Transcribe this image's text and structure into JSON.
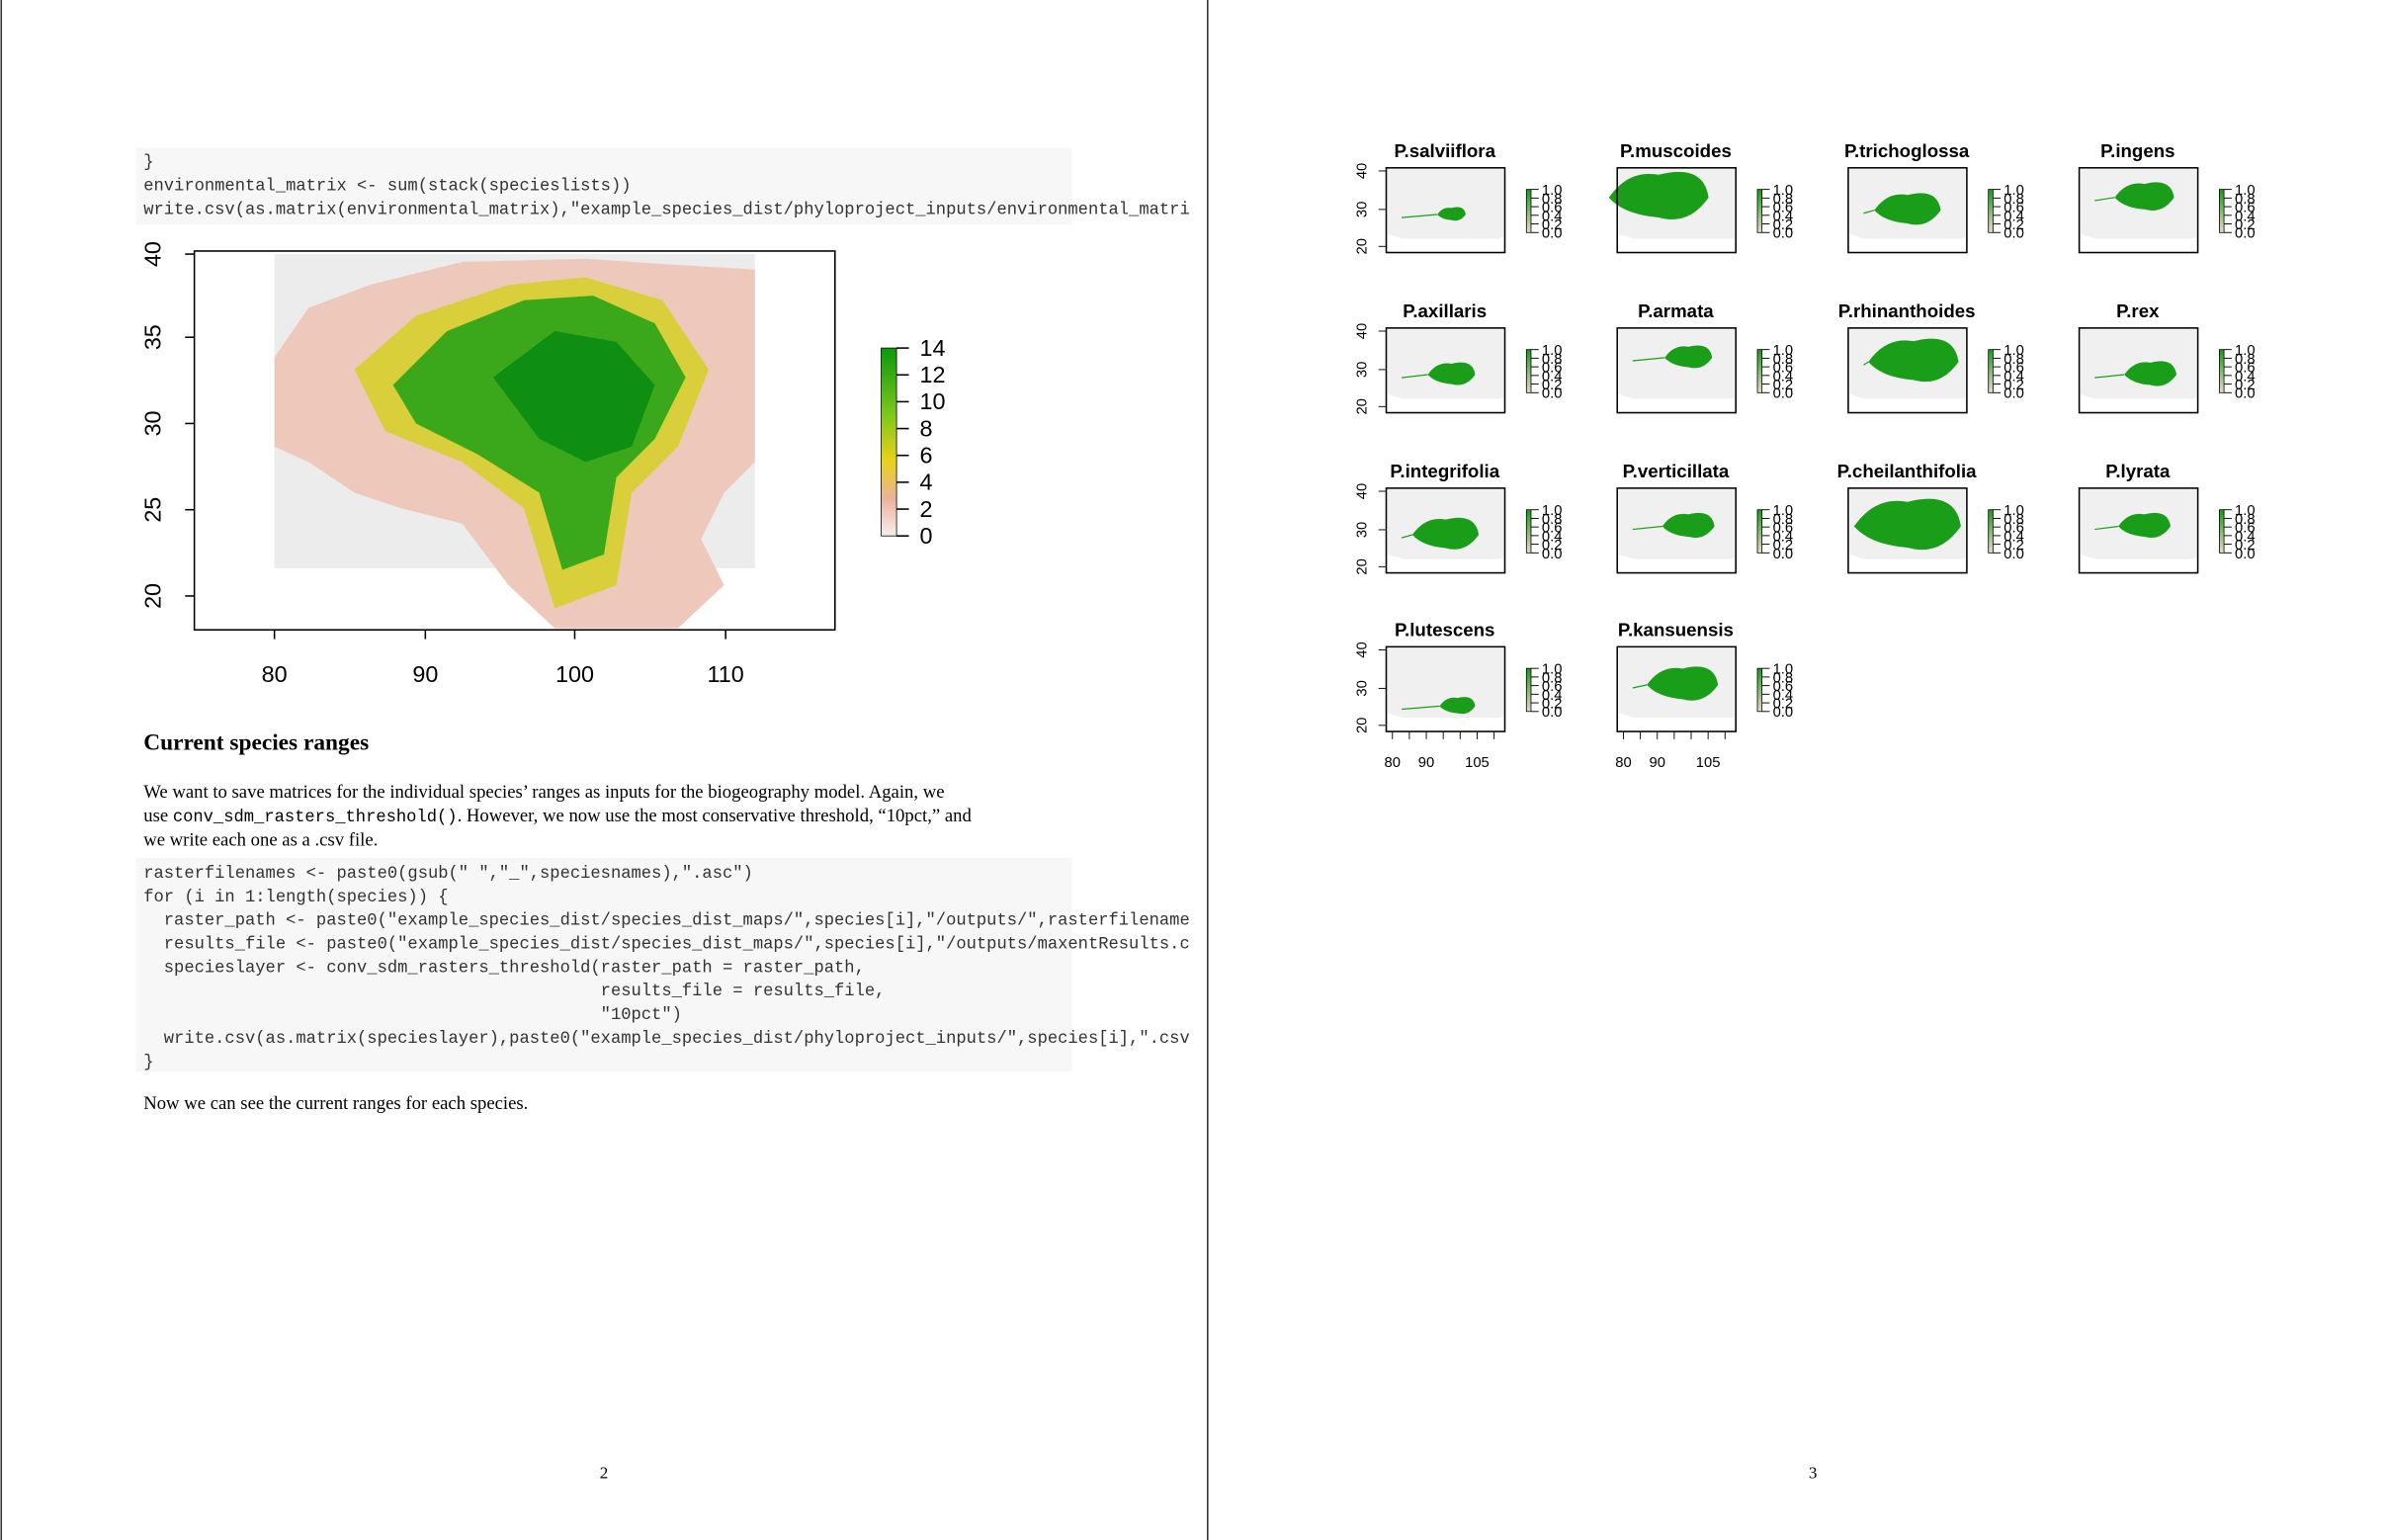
{
  "pages": [
    {
      "number": "2",
      "code_1": [
        "}",
        "environmental_matrix <- sum(stack(specieslists))",
        "write.csv(as.matrix(environmental_matrix),\"example_species_dist/phyloproject_inputs/environmental_matri"
      ],
      "figure": {
        "yticks": [
          "40",
          "35",
          "30",
          "25",
          "20"
        ],
        "xticks": [
          "80",
          "90",
          "100",
          "110"
        ],
        "legend_ticks": [
          "14",
          "12",
          "10",
          "8",
          "6",
          "4",
          "2",
          "0"
        ]
      },
      "heading": "Current species ranges",
      "paragraph": [
        "We want to save matrices for the individual species’ ranges as inputs for the biogeography model.  Again, we",
        {
          "before": "use ",
          "code": "conv_sdm_rasters_threshold()",
          "after": ". However, we now use the most conservative threshold, “10pct,” and"
        },
        "we write each one as a .csv file."
      ],
      "code_2": [
        "rasterfilenames <- paste0(gsub(\" \",\"_\",speciesnames),\".asc\")",
        "for (i in 1:length(species)) {",
        "  raster_path <- paste0(\"example_species_dist/species_dist_maps/\",species[i],\"/outputs/\",rasterfilename",
        "  results_file <- paste0(\"example_species_dist/species_dist_maps/\",species[i],\"/outputs/maxentResults.c",
        "  specieslayer <- conv_sdm_rasters_threshold(raster_path = raster_path,",
        "                                             results_file = results_file,",
        "                                             \"10pct\")",
        "  write.csv(as.matrix(specieslayer),paste0(\"example_species_dist/phyloproject_inputs/\",species[i],\".csv",
        "}"
      ],
      "paragraph_2": "Now we can see the current ranges for each species."
    },
    {
      "number": "3",
      "maps": [
        "P.salviiflora",
        "P.muscoides",
        "P.trichoglossa",
        "P.ingens",
        "P.axillaris",
        "P.armata",
        "P.rhinanthoides",
        "P.rex",
        "P.integrifolia",
        "P.verticillata",
        "P.cheilanthifolia",
        "P.lyrata",
        "P.lutescens",
        "P.kansuensis"
      ],
      "yticks": [
        "40",
        "30",
        "20"
      ],
      "legend_ticks": [
        "1.0",
        "0.8",
        "0.6",
        "0.4",
        "0.2",
        "0.0"
      ],
      "xticks": [
        "80",
        "90",
        "105"
      ]
    }
  ]
}
